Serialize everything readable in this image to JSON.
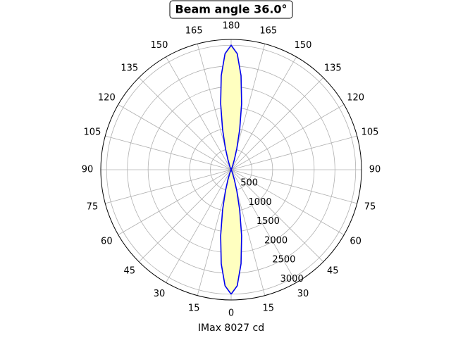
{
  "chart_data": {
    "type": "polar",
    "title": "Beam angle 36.0°",
    "xlabel": "IMax 8027 cd",
    "theta": [
      0,
      3,
      6,
      9,
      12,
      15,
      18,
      21,
      24,
      27,
      30,
      150,
      153,
      156,
      159,
      162,
      165,
      168,
      171,
      174,
      177,
      180,
      183,
      186,
      189,
      192,
      195,
      198,
      201,
      204,
      207,
      210,
      330,
      333,
      336,
      339,
      342,
      345,
      348,
      351,
      354,
      357,
      360
    ],
    "series": [
      {
        "color": "#0000ee",
        "fill": "#ffffc0",
        "values": [
          3000,
          2802,
          2280,
          1614,
          993,
          531,
          243,
          96,
          33,
          9,
          2,
          2,
          9,
          33,
          96,
          243,
          531,
          993,
          1614,
          2280,
          2802,
          3000,
          2802,
          2280,
          1614,
          993,
          531,
          243,
          96,
          33,
          9,
          2,
          2,
          9,
          33,
          96,
          243,
          531,
          993,
          1614,
          2280,
          2802,
          3000
        ]
      }
    ],
    "rlim": [
      0,
      3140
    ],
    "rticks": [
      500,
      1000,
      1500,
      2000,
      2500,
      3000
    ],
    "xticks": [
      0,
      15,
      30,
      45,
      60,
      75,
      90,
      105,
      120,
      135,
      150,
      165,
      180,
      {
        "value": 195,
        "label": "165"
      },
      {
        "value": 210,
        "label": "150"
      },
      {
        "value": 225,
        "label": "135"
      },
      {
        "value": 240,
        "label": "120"
      },
      {
        "value": 255,
        "label": "105"
      },
      {
        "value": 270,
        "label": "90"
      },
      {
        "value": 285,
        "label": "75"
      },
      {
        "value": 300,
        "label": "60"
      },
      {
        "value": 315,
        "label": "45"
      },
      {
        "value": 330,
        "label": "30"
      },
      {
        "value": 345,
        "label": "15"
      }
    ],
    "grid": true
  }
}
